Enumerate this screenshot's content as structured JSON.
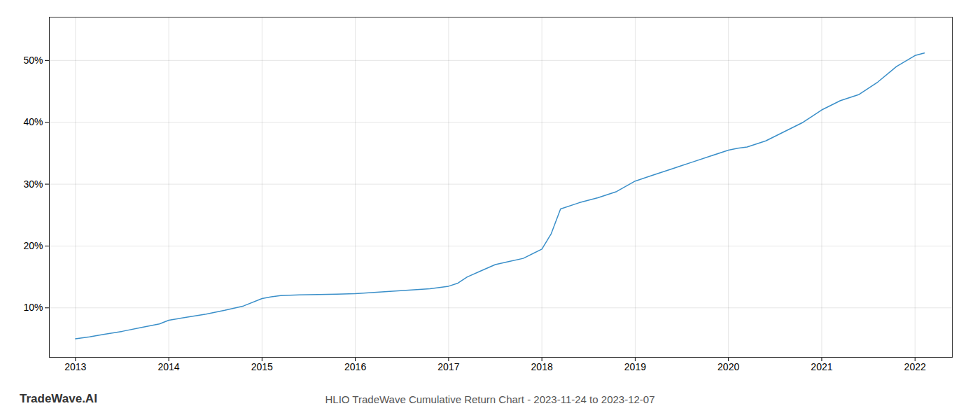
{
  "chart_data": {
    "type": "line",
    "title": "HLIO TradeWave Cumulative Return Chart - 2023-11-24 to 2023-12-07",
    "annotations": [
      "TradeWave.AI"
    ],
    "x": [
      2013.0,
      2013.15,
      2013.3,
      2013.5,
      2013.7,
      2013.9,
      2014.0,
      2014.2,
      2014.4,
      2014.6,
      2014.8,
      2015.0,
      2015.1,
      2015.2,
      2015.4,
      2015.6,
      2015.8,
      2016.0,
      2016.2,
      2016.4,
      2016.6,
      2016.8,
      2017.0,
      2017.1,
      2017.2,
      2017.35,
      2017.5,
      2017.65,
      2017.8,
      2018.0,
      2018.1,
      2018.2,
      2018.4,
      2018.6,
      2018.8,
      2019.0,
      2019.2,
      2019.4,
      2019.5,
      2019.6,
      2019.8,
      2020.0,
      2020.1,
      2020.2,
      2020.4,
      2020.6,
      2020.8,
      2021.0,
      2021.2,
      2021.4,
      2021.6,
      2021.8,
      2022.0,
      2022.1
    ],
    "values": [
      5.0,
      5.3,
      5.7,
      6.2,
      6.8,
      7.4,
      8.0,
      8.5,
      9.0,
      9.6,
      10.3,
      11.5,
      11.8,
      12.0,
      12.1,
      12.15,
      12.2,
      12.3,
      12.5,
      12.7,
      12.9,
      13.1,
      13.5,
      14.0,
      15.0,
      16.0,
      17.0,
      17.5,
      18.0,
      19.5,
      22.0,
      26.0,
      27.0,
      27.8,
      28.8,
      30.5,
      31.5,
      32.5,
      33.0,
      33.5,
      34.5,
      35.5,
      35.8,
      36.0,
      37.0,
      38.5,
      40.0,
      42.0,
      43.5,
      44.5,
      46.5,
      49.0,
      50.8,
      51.2
    ],
    "color": "#3a8fc9",
    "xlim": [
      2012.72,
      2022.4
    ],
    "xticks": [
      2013,
      2014,
      2015,
      2016,
      2017,
      2018,
      2019,
      2020,
      2021,
      2022
    ],
    "ylim": [
      2,
      57
    ],
    "yticks": [
      {
        "value": 10,
        "label": "10%"
      },
      {
        "value": 20,
        "label": "20%"
      },
      {
        "value": 30,
        "label": "30%"
      },
      {
        "value": 40,
        "label": "40%"
      },
      {
        "value": 50,
        "label": "50%"
      }
    ],
    "grid": true
  }
}
